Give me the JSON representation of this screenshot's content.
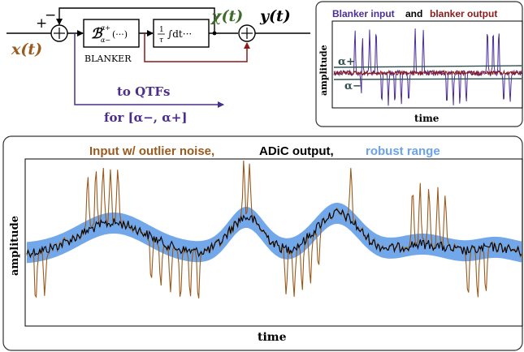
{
  "diagram": {
    "labels": {
      "input": "x(t)",
      "chi": "χ(t)",
      "output": "y(t)",
      "plus": "+",
      "minus": "−",
      "blanker_block": "ℬ",
      "blanker_sup": "α+",
      "blanker_sub": "α−",
      "blanker_args": "(···)",
      "integrator_num": "1",
      "integrator_den": "τ",
      "integrator_body": "∫dt···",
      "blanker_name": "BLANKER",
      "to_qtfs": "to QTFs",
      "for_range": "for [α−, α+]"
    },
    "colors": {
      "input": "#9a5a1e",
      "chi": "#3d6b2a",
      "qtf": "#4b2e8a",
      "feedback": "#8b1a1a",
      "black": "#000000"
    }
  },
  "top_panel": {
    "title_part1": "Blanker input",
    "title_and": "and",
    "title_part2": "blanker output",
    "ylabel": "amplitude",
    "xlabel": "time",
    "alpha_plus": "α+",
    "alpha_minus": "α−",
    "colors": {
      "input": "#4b2e9a",
      "output": "#8b1a1a",
      "bounds": "#2f4f4f"
    }
  },
  "main_panel": {
    "title_part1": "Input w/ outlier noise,",
    "title_part2": "ADiC output,",
    "title_part3": "robust range",
    "ylabel": "amplitude",
    "xlabel": "time",
    "colors": {
      "input": "#9a5a1e",
      "output": "#000000",
      "range": "#6aa3e8"
    }
  }
}
